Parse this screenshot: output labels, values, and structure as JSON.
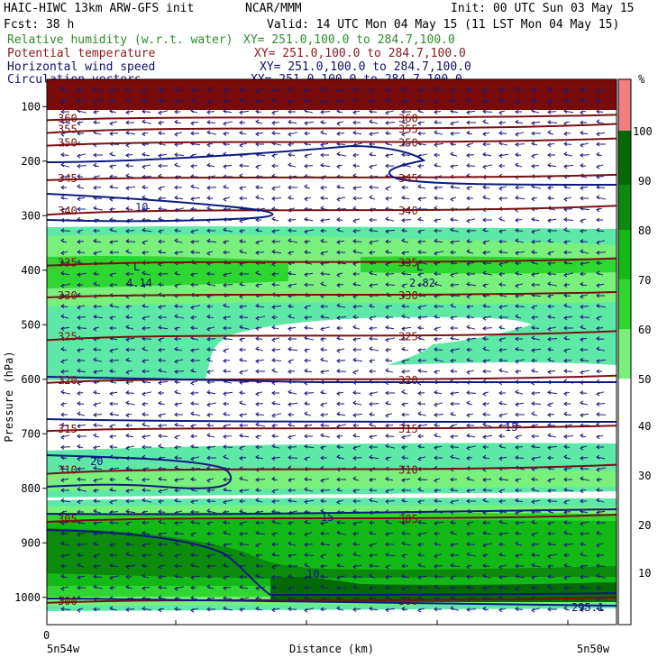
{
  "header": {
    "model": "HAIC-HIWC 13km ARW-GFS init",
    "org": "NCAR/MMM",
    "init": "Init: 00 UTC Sun 03 May 15",
    "fcst": "Fcst:   38 h",
    "valid": "Valid: 14 UTC Mon 04 May 15 (11 LST Mon 04 May 15)",
    "fields": [
      {
        "name": "Relative humidity (w.r.t. water)",
        "xy": "XY= 251.0,100.0 to 284.7,100.0",
        "color": "#2e8b2e"
      },
      {
        "name": "Potential temperature",
        "xy": "XY= 251.0,100.0 to 284.7,100.0",
        "color": "#8b1a1a"
      },
      {
        "name": "Horizontal wind speed",
        "xy": "XY= 251.0,100.0 to 284.7,100.0",
        "color": "#101060"
      },
      {
        "name": "Circulation vectors",
        "xy": "XY= 251.0,100.0 to 284.7,100.0",
        "color": "#101080"
      }
    ]
  },
  "colorbar": {
    "unit": "%",
    "levels": [
      "10",
      "20",
      "30",
      "40",
      "50",
      "60",
      "70",
      "80",
      "90",
      "100"
    ],
    "colors": {
      "50": "#5ee8a8",
      "60": "#79f07c",
      "70": "#2fd62f",
      "80": "#14b814",
      "90": "#0b8a0b",
      "100": "#056a05",
      "top": "#f08080"
    }
  },
  "chart_data": {
    "type": "heatmap",
    "xlabel": "Distance (km)",
    "ylabel": "Pressure (hPa)",
    "x_tick_labels": [
      "0"
    ],
    "x_endpoints": [
      "5n54w",
      "5n50w"
    ],
    "y_ticks": [
      100,
      200,
      300,
      400,
      500,
      600,
      700,
      800,
      900,
      1000
    ],
    "ylim": [
      1050,
      50
    ],
    "rh_levels": [
      50,
      60,
      70,
      80,
      90,
      100
    ],
    "theta_contours": [
      {
        "value": 300,
        "p": 1005
      },
      {
        "value": 305,
        "p": 855
      },
      {
        "value": 310,
        "p": 765
      },
      {
        "value": 315,
        "p": 690
      },
      {
        "value": 320,
        "p": 600
      },
      {
        "value": 325,
        "p": 520
      },
      {
        "value": 330,
        "p": 445
      },
      {
        "value": 335,
        "p": 385
      },
      {
        "value": 340,
        "p": 290
      },
      {
        "value": 345,
        "p": 230
      },
      {
        "value": 350,
        "p": 165
      },
      {
        "value": 355,
        "p": 140
      },
      {
        "value": 360,
        "p": 120
      }
    ],
    "wind_labels": [
      "10",
      "15",
      "20",
      "15",
      "10"
    ],
    "lows": [
      {
        "label": "L",
        "value": "4.14",
        "x": 0.17,
        "p": 420
      },
      {
        "label": "L",
        "value": "2.82",
        "x": 0.65,
        "p": 420
      }
    ],
    "corner_value": "295.1"
  }
}
